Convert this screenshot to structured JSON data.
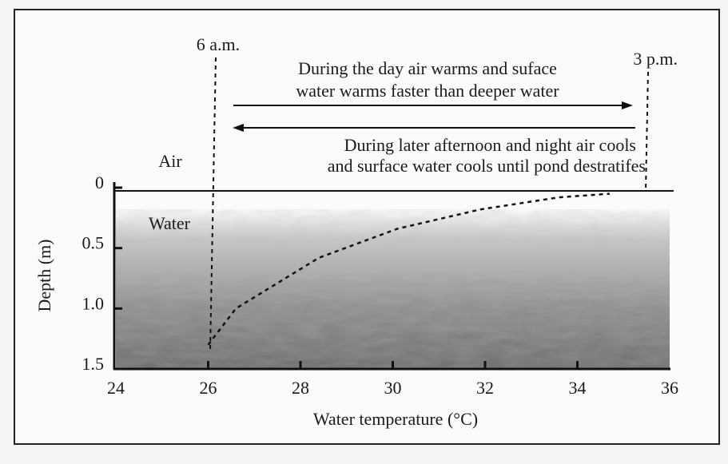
{
  "chart_data": {
    "type": "line",
    "x_label": "Water temperature (°C)",
    "y_label": "Depth (m)",
    "x": [
      26.0,
      26.6,
      28.4,
      30.1,
      31.9,
      33.6,
      34.7
    ],
    "series": [
      {
        "color": "#111111",
        "values": [
          1.3,
          1.0,
          0.58,
          0.34,
          0.18,
          0.08,
          0.05
        ]
      }
    ],
    "xlim": [
      24,
      36
    ],
    "xticks": [
      24,
      26,
      28,
      30,
      32,
      34,
      36
    ],
    "ylim": [
      0,
      1.5
    ],
    "y_inverted": true,
    "yticks": [
      0,
      0.5,
      {
        "value": 1,
        "label": "1.0"
      },
      1.5
    ],
    "annotations": {
      "start": "6 a.m.",
      "end": "3 p.m.",
      "warming": [
        "During the day air warms and suface",
        "water warms faster than deeper water"
      ],
      "cooling": [
        "During later afternoon and night air cools",
        "and surface water cools until pond destratifes"
      ],
      "air": "Air",
      "water": "Water"
    }
  }
}
